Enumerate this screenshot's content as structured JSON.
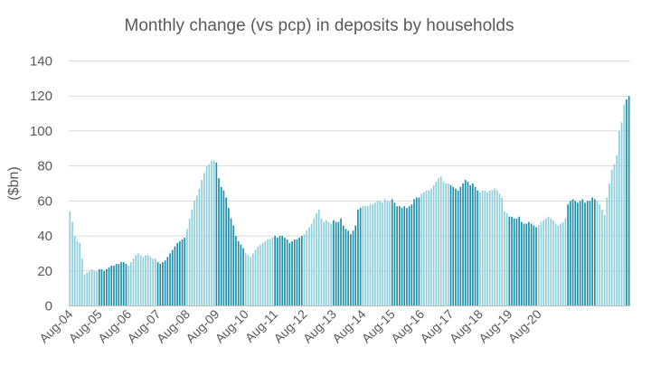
{
  "chart_data": {
    "type": "bar",
    "title": "Monthly change (vs pcp) in deposits by households",
    "xlabel": "",
    "ylabel": "($bn)",
    "ylim": [
      0,
      140
    ],
    "yticks": [
      0,
      20,
      40,
      60,
      80,
      100,
      120,
      140
    ],
    "grid": true,
    "legend": "none",
    "x_tick_labels": [
      "Aug-04",
      "Aug-05",
      "Aug-06",
      "Aug-07",
      "Aug-08",
      "Aug-09",
      "Aug-10",
      "Aug-11",
      "Aug-12",
      "Aug-13",
      "Aug-14",
      "Aug-15",
      "Aug-16",
      "Aug-17",
      "Aug-18",
      "Aug-19",
      "Aug-20"
    ],
    "colors": {
      "bar_light": "#8ecfdc",
      "bar_dark": "#1d8faa",
      "grid": "#d9d9d9",
      "text": "#595959"
    },
    "start_month": "Aug-04",
    "values": [
      54,
      48,
      40,
      37,
      36,
      27,
      18,
      19,
      20,
      21,
      20,
      20,
      21,
      21,
      20,
      21,
      22,
      23,
      23,
      24,
      24,
      25,
      25,
      24,
      23,
      25,
      27,
      29,
      30,
      29,
      28,
      29,
      29,
      28,
      27,
      27,
      25,
      24,
      25,
      26,
      28,
      30,
      32,
      34,
      36,
      37,
      38,
      39,
      44,
      50,
      55,
      60,
      63,
      67,
      72,
      76,
      80,
      81,
      83,
      83,
      82,
      73,
      68,
      66,
      62,
      56,
      50,
      46,
      40,
      37,
      35,
      33,
      30,
      29,
      28,
      30,
      32,
      34,
      35,
      36,
      37,
      38,
      38,
      39,
      40,
      39,
      40,
      40,
      39,
      38,
      36,
      37,
      38,
      38,
      39,
      40,
      41,
      43,
      45,
      47,
      50,
      53,
      55,
      50,
      48,
      49,
      48,
      47,
      49,
      48,
      48,
      50,
      46,
      44,
      43,
      41,
      43,
      46,
      55,
      56,
      57,
      57,
      57,
      58,
      58,
      59,
      60,
      60,
      59,
      61,
      60,
      60,
      61,
      59,
      57,
      57,
      56,
      57,
      56,
      57,
      58,
      61,
      62,
      62,
      64,
      65,
      66,
      66,
      67,
      69,
      71,
      73,
      74,
      71,
      70,
      70,
      69,
      68,
      67,
      66,
      68,
      70,
      72,
      71,
      69,
      70,
      68,
      66,
      65,
      66,
      66,
      65,
      66,
      66,
      67,
      66,
      64,
      62,
      54,
      53,
      51,
      51,
      50,
      50,
      51,
      48,
      47,
      47,
      48,
      47,
      46,
      45,
      46,
      48,
      49,
      50,
      51,
      50,
      49,
      47,
      46,
      47,
      48,
      50,
      58,
      60,
      61,
      60,
      59,
      60,
      61,
      59,
      60,
      60,
      62,
      61,
      60,
      58,
      55,
      52,
      62,
      70,
      78,
      81,
      86,
      100,
      105,
      115,
      118,
      120
    ]
  }
}
